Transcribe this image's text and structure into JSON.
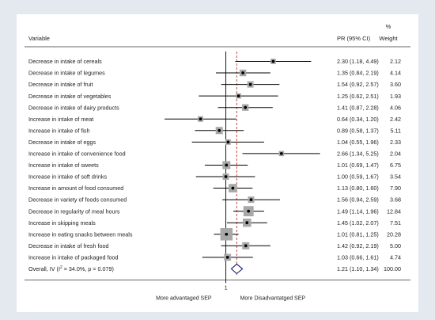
{
  "chart_data": {
    "type": "forest",
    "headers": {
      "variable": "Variable",
      "estimate": "PR (95% CI)",
      "weight_unit": "%",
      "weight": "Weight"
    },
    "xscale": "log",
    "xlim": [
      0.2,
      5.5
    ],
    "reference_line": 1,
    "reference_label": "1",
    "overall_line": 1.21,
    "rows": [
      {
        "label": "Decrease in intake of cereals",
        "pr": 2.3,
        "lo": 1.18,
        "hi": 4.49,
        "ci_text": "2.30 (1.18, 4.49)",
        "weight": 2.12,
        "weight_text": "2.12"
      },
      {
        "label": "Decrease in intake of legumes",
        "pr": 1.35,
        "lo": 0.84,
        "hi": 2.19,
        "ci_text": "1.35 (0.84, 2.19)",
        "weight": 4.14,
        "weight_text": "4.14"
      },
      {
        "label": "Decrease in intake of fruit",
        "pr": 1.54,
        "lo": 0.92,
        "hi": 2.57,
        "ci_text": "1.54 (0.92, 2.57)",
        "weight": 3.6,
        "weight_text": "3.60"
      },
      {
        "label": "Decrease in intake of vegetables",
        "pr": 1.25,
        "lo": 0.62,
        "hi": 2.51,
        "ci_text": "1.25 (0.62, 2.51)",
        "weight": 1.93,
        "weight_text": "1.93"
      },
      {
        "label": "Decrease in intake of dairy products",
        "pr": 1.41,
        "lo": 0.87,
        "hi": 2.28,
        "ci_text": "1.41 (0.87, 2.28)",
        "weight": 4.06,
        "weight_text": "4.06"
      },
      {
        "label": "Increase in intake of meat",
        "pr": 0.64,
        "lo": 0.34,
        "hi": 1.2,
        "ci_text": "0.64 (0.34, 1.20)",
        "weight": 2.42,
        "weight_text": "2.42"
      },
      {
        "label": "Increase in intake of fish",
        "pr": 0.89,
        "lo": 0.58,
        "hi": 1.37,
        "ci_text": "0.89 (0.58, 1.37)",
        "weight": 5.11,
        "weight_text": "5.11"
      },
      {
        "label": "Decrease in intake of eggs",
        "pr": 1.04,
        "lo": 0.55,
        "hi": 1.96,
        "ci_text": "1.04 (0.55, 1.96)",
        "weight": 2.33,
        "weight_text": "2.33"
      },
      {
        "label": "Increase in intake of convenience food",
        "pr": 2.66,
        "lo": 1.34,
        "hi": 5.25,
        "ci_text": "2.66 (1.34, 5.25)",
        "weight": 2.04,
        "weight_text": "2.04"
      },
      {
        "label": "Increase in intake of sweets",
        "pr": 1.01,
        "lo": 0.69,
        "hi": 1.47,
        "ci_text": "1.01 (0.69, 1.47)",
        "weight": 6.75,
        "weight_text": "6.75"
      },
      {
        "label": "Increase in intake of soft drinks",
        "pr": 1.0,
        "lo": 0.59,
        "hi": 1.67,
        "ci_text": "1.00 (0.59, 1.67)",
        "weight": 3.54,
        "weight_text": "3.54"
      },
      {
        "label": "Increase in amount of food consumed",
        "pr": 1.13,
        "lo": 0.8,
        "hi": 1.6,
        "ci_text": "1.13 (0.80, 1.60)",
        "weight": 7.9,
        "weight_text": "7.90"
      },
      {
        "label": "Decrease in variety of foods consumed",
        "pr": 1.56,
        "lo": 0.94,
        "hi": 2.59,
        "ci_text": "1.56 (0.94, 2.59)",
        "weight": 3.68,
        "weight_text": "3.68"
      },
      {
        "label": "Decrease in regularity of meal hours",
        "pr": 1.49,
        "lo": 1.14,
        "hi": 1.96,
        "ci_text": "1.49 (1.14, 1.96)",
        "weight": 12.84,
        "weight_text": "12.84"
      },
      {
        "label": "Increase in skipping meals",
        "pr": 1.45,
        "lo": 1.02,
        "hi": 2.07,
        "ci_text": "1.45 (1.02, 2.07)",
        "weight": 7.51,
        "weight_text": "7.51"
      },
      {
        "label": "Increase in eating snacks between meals",
        "pr": 1.01,
        "lo": 0.81,
        "hi": 1.25,
        "ci_text": "1.01 (0.81, 1.25)",
        "weight": 20.28,
        "weight_text": "20.28"
      },
      {
        "label": "Decrease in intake of fresh food",
        "pr": 1.42,
        "lo": 0.92,
        "hi": 2.19,
        "ci_text": "1.42 (0.92, 2.19)",
        "weight": 5.0,
        "weight_text": "5.00"
      },
      {
        "label": "Increase in intake of packaged food",
        "pr": 1.03,
        "lo": 0.66,
        "hi": 1.61,
        "ci_text": "1.03 (0.66, 1.61)",
        "weight": 4.74,
        "weight_text": "4.74"
      }
    ],
    "overall": {
      "label_prefix": "Overall, IV (I",
      "label_sup": "2",
      "label_suffix": " = 34.0%, p = 0.079)",
      "pr": 1.21,
      "lo": 1.1,
      "hi": 1.34,
      "ci_text": "1.21 (1.10, 1.34)",
      "weight": 100.0,
      "weight_text": "100.00"
    },
    "footer": {
      "left": "More advantaged SEP",
      "right": "More Disadvantatged SEP"
    },
    "colors": {
      "box": "#a8a8a8",
      "ci": "#000000",
      "overall_line": "#c0392b",
      "diamond": "#1a237e",
      "page_bg": "#e3e9ef"
    }
  }
}
